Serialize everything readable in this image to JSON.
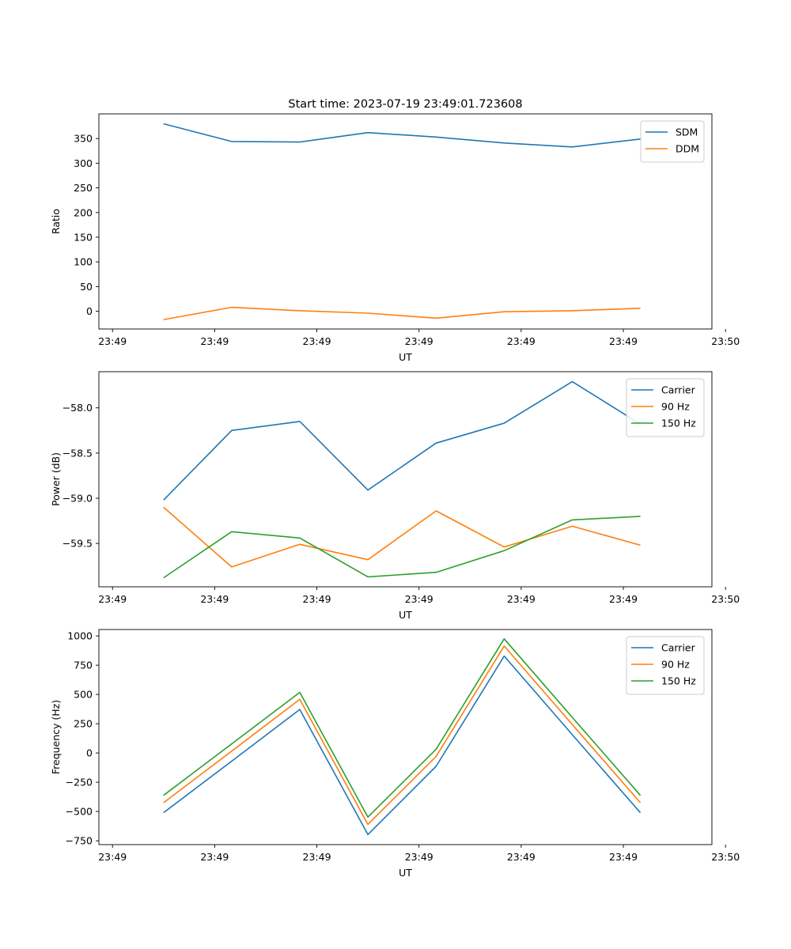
{
  "figure_title": "Start time: 2023-07-19 23:49:01.723608",
  "colors": {
    "tab_blue": "#1f77b4",
    "tab_orange": "#ff7f0e",
    "tab_green": "#2ca02c",
    "axis": "#000000",
    "background": "#ffffff"
  },
  "chart_data": [
    {
      "type": "line",
      "title": "Start time: 2023-07-19 23:49:01.723608",
      "xlabel": "UT",
      "ylabel": "Ratio",
      "grid": false,
      "legend_location": "upper right",
      "xlim": [
        -0.2,
        8.8
      ],
      "x_tick_positions": [
        0,
        1.5,
        3,
        4.5,
        6,
        7.5,
        9
      ],
      "x_tick_labels": [
        "23:49",
        "23:49",
        "23:49",
        "23:49",
        "23:49",
        "23:49",
        "23:50"
      ],
      "ylim": [
        -36,
        400
      ],
      "yticks": [
        0,
        50,
        100,
        150,
        200,
        250,
        300,
        350
      ],
      "x": [
        0.75,
        1.75,
        2.75,
        3.75,
        4.75,
        5.75,
        6.75,
        7.75
      ],
      "series": [
        {
          "name": "SDM",
          "color": "#1f77b4",
          "values": [
            380,
            344,
            343,
            362,
            353,
            341,
            333,
            349
          ]
        },
        {
          "name": "DDM",
          "color": "#ff7f0e",
          "values": [
            -17,
            8,
            1,
            -4,
            -14,
            -1,
            1,
            6
          ]
        }
      ]
    },
    {
      "type": "line",
      "title": "",
      "xlabel": "UT",
      "ylabel": "Power (dB)",
      "grid": false,
      "legend_location": "upper right",
      "xlim": [
        -0.2,
        8.8
      ],
      "x_tick_positions": [
        0,
        1.5,
        3,
        4.5,
        6,
        7.5,
        9
      ],
      "x_tick_labels": [
        "23:49",
        "23:49",
        "23:49",
        "23:49",
        "23:49",
        "23:49",
        "23:50"
      ],
      "ylim": [
        -59.98,
        -57.6
      ],
      "yticks": [
        -59.5,
        -59.0,
        -58.5,
        -58.0
      ],
      "ytick_labels": [
        "−59.5",
        "−59.0",
        "−58.5",
        "−58.0"
      ],
      "x": [
        0.75,
        1.75,
        2.75,
        3.75,
        4.75,
        5.75,
        6.75,
        7.75
      ],
      "series": [
        {
          "name": "Carrier",
          "color": "#1f77b4",
          "values": [
            -59.02,
            -58.25,
            -58.15,
            -58.91,
            -58.39,
            -58.17,
            -57.71,
            -58.18
          ]
        },
        {
          "name": "90 Hz",
          "color": "#ff7f0e",
          "values": [
            -59.1,
            -59.76,
            -59.51,
            -59.68,
            -59.14,
            -59.54,
            -59.31,
            -59.52
          ]
        },
        {
          "name": "150 Hz",
          "color": "#2ca02c",
          "values": [
            -59.88,
            -59.37,
            -59.44,
            -59.87,
            -59.82,
            -59.58,
            -59.24,
            -59.2
          ]
        }
      ]
    },
    {
      "type": "line",
      "title": "",
      "xlabel": "UT",
      "ylabel": "Frequency (Hz)",
      "grid": false,
      "legend_location": "upper right",
      "xlim": [
        -0.2,
        8.8
      ],
      "x_tick_positions": [
        0,
        1.5,
        3,
        4.5,
        6,
        7.5,
        9
      ],
      "x_tick_labels": [
        "23:49",
        "23:49",
        "23:49",
        "23:49",
        "23:49",
        "23:49",
        "23:50"
      ],
      "ylim": [
        -783,
        1055
      ],
      "yticks": [
        -750,
        -500,
        -250,
        0,
        250,
        500,
        750,
        1000
      ],
      "ytick_labels": [
        "−750",
        "−500",
        "−250",
        "0",
        "250",
        "500",
        "750",
        "1000"
      ],
      "x": [
        0.75,
        1.75,
        2.75,
        3.75,
        4.75,
        5.75,
        6.75,
        7.75
      ],
      "series": [
        {
          "name": "Carrier",
          "color": "#1f77b4",
          "values": [
            -510,
            -70,
            372,
            -697,
            -114,
            828,
            156,
            -511
          ]
        },
        {
          "name": "90 Hz",
          "color": "#ff7f0e",
          "values": [
            -425,
            16,
            458,
            -610,
            -30,
            914,
            243,
            -425
          ]
        },
        {
          "name": "150 Hz",
          "color": "#2ca02c",
          "values": [
            -362,
            78,
            518,
            -548,
            32,
            975,
            304,
            -362
          ]
        }
      ]
    }
  ]
}
